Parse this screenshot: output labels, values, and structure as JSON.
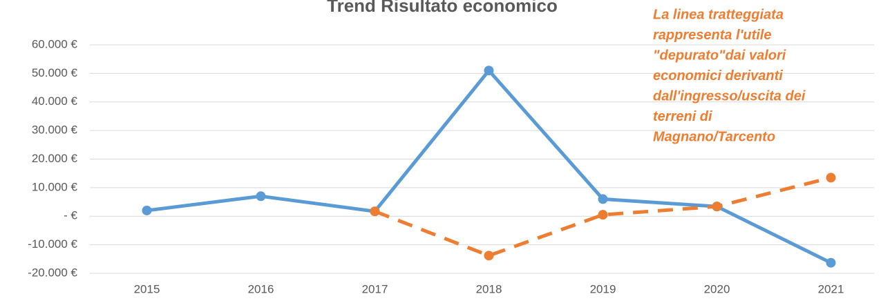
{
  "chart_data": {
    "type": "line",
    "title": "Trend Risultato economico",
    "annotation": [
      "La linea tratteggiata",
      "rappresenta l'utile",
      "\"depurato\"dai valori",
      "economici derivanti",
      "dall'ingresso/uscita dei",
      "terreni di",
      "Magnano/Tarcento"
    ],
    "categories": [
      "2015",
      "2016",
      "2017",
      "2018",
      "2019",
      "2020",
      "2021"
    ],
    "series": [
      {
        "name": "Risultato economico",
        "color": "#5b9bd5",
        "dashed": false,
        "values": [
          2000,
          7000,
          1700,
          51000,
          6000,
          3400,
          -16300
        ]
      },
      {
        "name": "Utile depurato",
        "color": "#ed7d31",
        "dashed": true,
        "values": [
          null,
          null,
          1700,
          -13800,
          500,
          3400,
          13500
        ]
      }
    ],
    "ylim": [
      -20000,
      60000
    ],
    "yticks": [
      {
        "value": -20000,
        "label": "-20.000 €"
      },
      {
        "value": -10000,
        "label": "-10.000 €"
      },
      {
        "value": 0,
        "label": "-   €"
      },
      {
        "value": 10000,
        "label": "10.000 €"
      },
      {
        "value": 20000,
        "label": "20.000 €"
      },
      {
        "value": 30000,
        "label": "30.000 €"
      },
      {
        "value": 40000,
        "label": "40.000 €"
      },
      {
        "value": 50000,
        "label": "50.000 €"
      },
      {
        "value": 60000,
        "label": "60.000 €"
      }
    ],
    "grid": true
  }
}
